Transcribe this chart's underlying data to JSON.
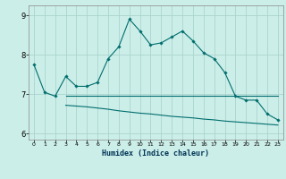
{
  "title": "",
  "xlabel": "Humidex (Indice chaleur)",
  "background_color": "#cceee8",
  "grid_color": "#aad4ce",
  "line_color": "#006e6e",
  "xlim": [
    -0.5,
    23.5
  ],
  "ylim": [
    5.85,
    9.25
  ],
  "yticks": [
    6,
    7,
    8,
    9
  ],
  "xticks": [
    0,
    1,
    2,
    3,
    4,
    5,
    6,
    7,
    8,
    9,
    10,
    11,
    12,
    13,
    14,
    15,
    16,
    17,
    18,
    19,
    20,
    21,
    22,
    23
  ],
  "line1_x": [
    0,
    1,
    2,
    3,
    4,
    5,
    6,
    7,
    8,
    9,
    10,
    11,
    12,
    13,
    14,
    15,
    16,
    17,
    18,
    19,
    20,
    21,
    22,
    23
  ],
  "line1_y": [
    7.75,
    7.05,
    6.95,
    7.45,
    7.2,
    7.2,
    7.3,
    7.9,
    8.2,
    8.9,
    8.6,
    8.25,
    8.3,
    8.45,
    8.6,
    8.35,
    8.05,
    7.9,
    7.55,
    6.95,
    6.85,
    6.85,
    6.5,
    6.35
  ],
  "line2_x": [
    3,
    4,
    5,
    6,
    7,
    8,
    9,
    10,
    11,
    12,
    13,
    14,
    15,
    16,
    17,
    18,
    19,
    20,
    21,
    22,
    23
  ],
  "line2_y": [
    6.95,
    6.95,
    6.95,
    6.95,
    6.95,
    6.95,
    6.95,
    6.95,
    6.95,
    6.95,
    6.95,
    6.95,
    6.95,
    6.95,
    6.95,
    6.95,
    6.95,
    6.95,
    6.95,
    6.95,
    6.95
  ],
  "line3_x": [
    3,
    4,
    5,
    6,
    7,
    8,
    9,
    10,
    11,
    12,
    13,
    14,
    15,
    16,
    17,
    18,
    19,
    20,
    21,
    22,
    23
  ],
  "line3_y": [
    6.72,
    6.7,
    6.68,
    6.65,
    6.62,
    6.58,
    6.55,
    6.52,
    6.5,
    6.47,
    6.44,
    6.42,
    6.4,
    6.37,
    6.35,
    6.32,
    6.3,
    6.28,
    6.26,
    6.24,
    6.22
  ]
}
